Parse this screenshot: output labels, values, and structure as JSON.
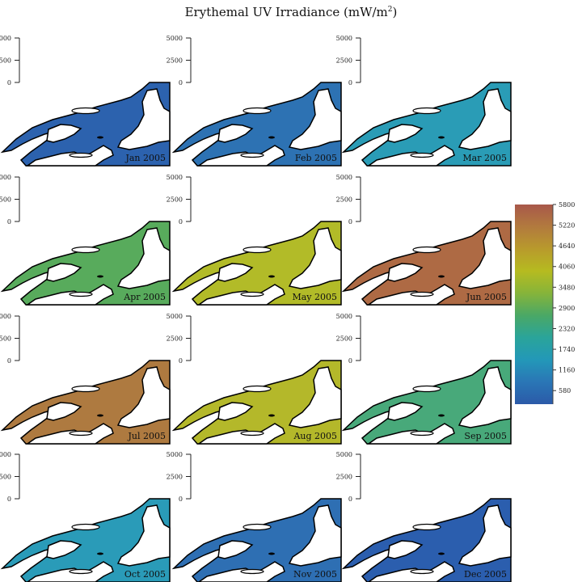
{
  "chart_data": {
    "type": "heatmap",
    "title": "Erythemal UV Irradiance (mW/m",
    "title_sup": "2",
    "title_close": ")",
    "axis_ticks": [
      "0",
      "2500",
      "5000"
    ],
    "axis_tick_values": [
      0,
      2500,
      5000
    ],
    "colorbar": {
      "ticks": [
        "580",
        "1160",
        "1740",
        "2320",
        "2900",
        "3480",
        "4060",
        "4640",
        "5220",
        "5800"
      ],
      "tick_values": [
        580,
        1160,
        1740,
        2320,
        2900,
        3480,
        4060,
        4640,
        5220,
        5800
      ],
      "range": [
        200,
        5800
      ],
      "colors": [
        "#2b5aa8",
        "#2a76b6",
        "#2398b8",
        "#2aa49a",
        "#4aa866",
        "#86b43a",
        "#b6bb20",
        "#b89a2c",
        "#b27a3e",
        "#a8584a"
      ]
    },
    "panels": [
      {
        "label": "Jan 2005",
        "value": 450,
        "color": "#2c62ae"
      },
      {
        "label": "Feb 2005",
        "value": 900,
        "color": "#2d72b3"
      },
      {
        "label": "Mar 2005",
        "value": 1900,
        "color": "#2a9cb6"
      },
      {
        "label": "Apr 2005",
        "value": 3000,
        "color": "#58ab5c"
      },
      {
        "label": "May 2005",
        "value": 3900,
        "color": "#b2bb28"
      },
      {
        "label": "Jun 2005",
        "value": 5350,
        "color": "#ae6a44"
      },
      {
        "label": "Jul 2005",
        "value": 5000,
        "color": "#ae7a40"
      },
      {
        "label": "Aug 2005",
        "value": 4000,
        "color": "#b4b82a"
      },
      {
        "label": "Sep 2005",
        "value": 2700,
        "color": "#48a97a"
      },
      {
        "label": "Oct 2005",
        "value": 1850,
        "color": "#2a9bb8"
      },
      {
        "label": "Nov 2005",
        "value": 850,
        "color": "#2e6fb3"
      },
      {
        "label": "Dec 2005",
        "value": 420,
        "color": "#2b5eae"
      }
    ]
  }
}
